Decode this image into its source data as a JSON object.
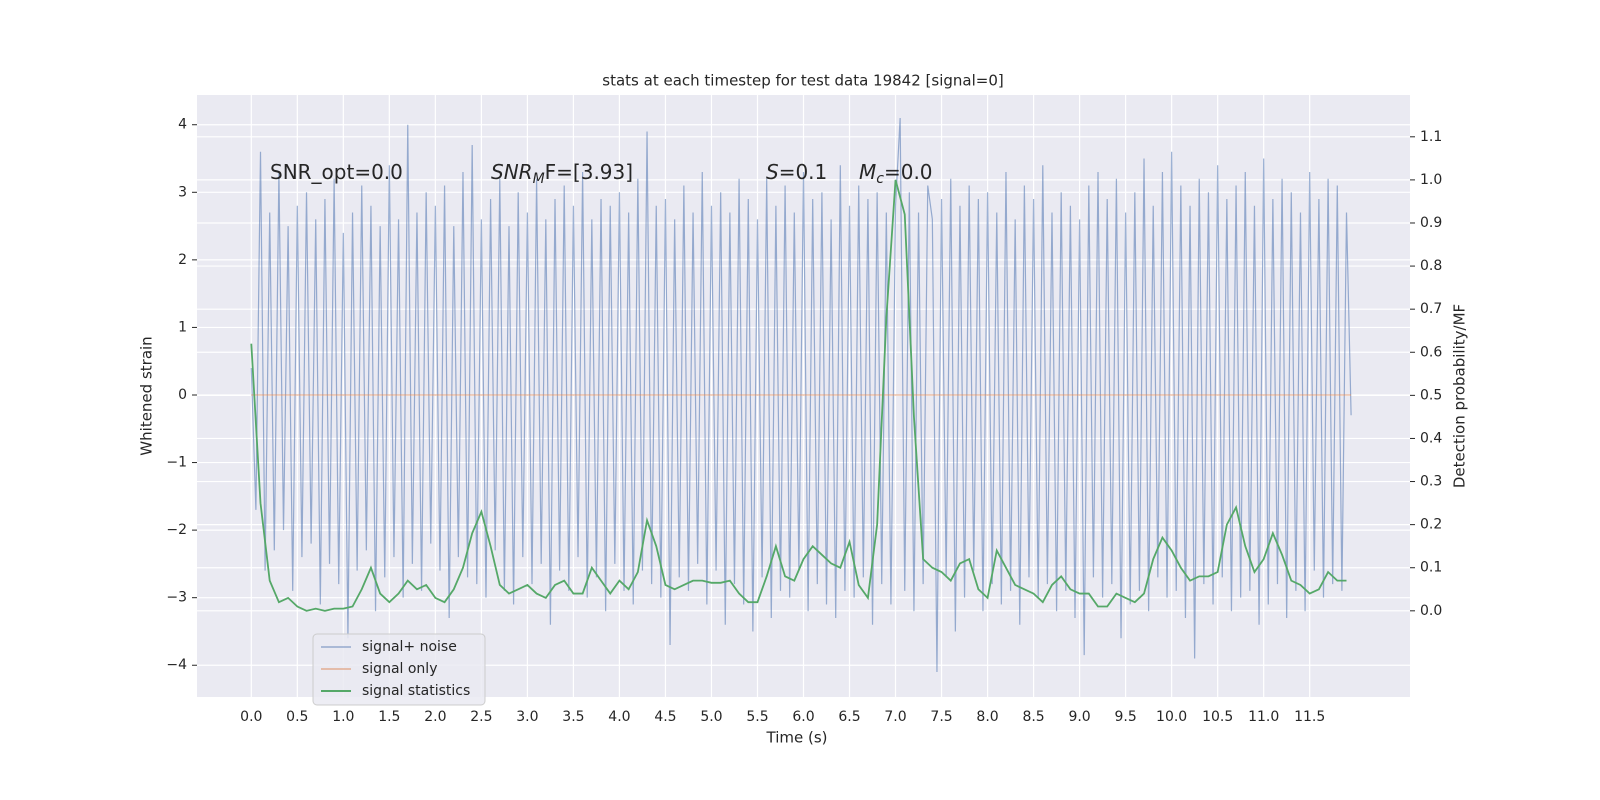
{
  "chart_data": {
    "type": "line",
    "title": "stats at each timestep for test data 19842 [signal=0]",
    "x_label": "Time (s)",
    "y_label": "Whitened strain",
    "y2_label": "Detection probability/MF",
    "xlim": [
      -0.59,
      12.59
    ],
    "ylim": [
      -4.47,
      4.44
    ],
    "y2lim": [
      -0.2,
      1.197
    ],
    "grid": true,
    "legend": "lower left",
    "xticks": [
      {
        "value": 0,
        "label": "0.0"
      },
      0.5,
      {
        "value": 1,
        "label": "1.0"
      },
      1.5,
      {
        "value": 2,
        "label": "2.0"
      },
      2.5,
      {
        "value": 3,
        "label": "3.0"
      },
      3.5,
      {
        "value": 4,
        "label": "4.0"
      },
      4.5,
      {
        "value": 5,
        "label": "5.0"
      },
      5.5,
      {
        "value": 6,
        "label": "6.0"
      },
      6.5,
      {
        "value": 7,
        "label": "7.0"
      },
      7.5,
      {
        "value": 8,
        "label": "8.0"
      },
      8.5,
      {
        "value": 9,
        "label": "9.0"
      },
      9.5,
      {
        "value": 10,
        "label": "10.0"
      },
      10.5,
      {
        "value": 11,
        "label": "11.0"
      },
      11.5
    ],
    "yticks": [
      {
        "value": -4,
        "label": "−4"
      },
      {
        "value": -3,
        "label": "−3"
      },
      {
        "value": -2,
        "label": "−2"
      },
      {
        "value": -1,
        "label": "−1"
      },
      0,
      1,
      2,
      3,
      4
    ],
    "y2ticks": [
      {
        "value": 0,
        "label": "0.0"
      },
      0.1,
      0.2,
      0.3,
      0.4,
      0.5,
      0.6,
      0.7,
      0.8,
      0.9,
      {
        "value": 1,
        "label": "1.0"
      },
      1.1
    ],
    "annotations": [
      {
        "text": "SNR_opt=0.0"
      },
      {
        "base": "SNR",
        "sub": "M",
        "tail": "F=[3.93]"
      },
      {
        "base": "S",
        "tail": "=0.1"
      },
      {
        "base": "M",
        "sub": "c",
        "tail": "=0.0"
      }
    ],
    "series": [
      {
        "name": "signal+ noise",
        "color": "#4c72b0",
        "axis": "y",
        "x": [
          0,
          0.05,
          0.1,
          0.15,
          0.2,
          0.25,
          0.3,
          0.35,
          0.4,
          0.45,
          0.5,
          0.55,
          0.6,
          0.65,
          0.7,
          0.75,
          0.8,
          0.85,
          0.9,
          0.95,
          1,
          1.05,
          1.1,
          1.15,
          1.2,
          1.25,
          1.3,
          1.35,
          1.4,
          1.45,
          1.5,
          1.55,
          1.6,
          1.65,
          1.7,
          1.75,
          1.8,
          1.85,
          1.9,
          1.95,
          2,
          2.05,
          2.1,
          2.15,
          2.2,
          2.25,
          2.3,
          2.35,
          2.4,
          2.45,
          2.5,
          2.55,
          2.6,
          2.65,
          2.7,
          2.75,
          2.8,
          2.85,
          2.9,
          2.95,
          3,
          3.05,
          3.1,
          3.15,
          3.2,
          3.25,
          3.3,
          3.35,
          3.4,
          3.45,
          3.5,
          3.55,
          3.6,
          3.65,
          3.7,
          3.75,
          3.8,
          3.85,
          3.9,
          3.95,
          4,
          4.05,
          4.1,
          4.15,
          4.2,
          4.25,
          4.3,
          4.35,
          4.4,
          4.45,
          4.5,
          4.55,
          4.6,
          4.65,
          4.7,
          4.75,
          4.8,
          4.85,
          4.9,
          4.95,
          5,
          5.05,
          5.1,
          5.15,
          5.2,
          5.25,
          5.3,
          5.35,
          5.4,
          5.45,
          5.5,
          5.55,
          5.6,
          5.65,
          5.7,
          5.75,
          5.8,
          5.85,
          5.9,
          5.95,
          6,
          6.05,
          6.1,
          6.15,
          6.2,
          6.25,
          6.3,
          6.35,
          6.4,
          6.45,
          6.5,
          6.55,
          6.6,
          6.65,
          6.7,
          6.75,
          6.8,
          6.85,
          6.9,
          6.95,
          7,
          7.05,
          7.1,
          7.15,
          7.2,
          7.25,
          7.3,
          7.35,
          7.4,
          7.45,
          7.5,
          7.55,
          7.6,
          7.65,
          7.7,
          7.75,
          7.8,
          7.85,
          7.9,
          7.95,
          8,
          8.05,
          8.1,
          8.15,
          8.2,
          8.25,
          8.3,
          8.35,
          8.4,
          8.45,
          8.5,
          8.55,
          8.6,
          8.65,
          8.7,
          8.75,
          8.8,
          8.85,
          8.9,
          8.95,
          9,
          9.05,
          9.1,
          9.15,
          9.2,
          9.25,
          9.3,
          9.35,
          9.4,
          9.45,
          9.5,
          9.55,
          9.6,
          9.65,
          9.7,
          9.75,
          9.8,
          9.85,
          9.9,
          9.95,
          10,
          10.05,
          10.1,
          10.15,
          10.2,
          10.25,
          10.3,
          10.35,
          10.4,
          10.45,
          10.5,
          10.55,
          10.6,
          10.65,
          10.7,
          10.75,
          10.8,
          10.85,
          10.9,
          10.95,
          11,
          11.05,
          11.1,
          11.15,
          11.2,
          11.25,
          11.3,
          11.35,
          11.4,
          11.45,
          11.5,
          11.55,
          11.6,
          11.65,
          11.7,
          11.75,
          11.8,
          11.85,
          11.9,
          11.95
        ],
        "values": [
          0.4,
          -1.7,
          3.6,
          -2.6,
          2.7,
          -2.3,
          3.3,
          -2.0,
          2.5,
          -2.9,
          2.8,
          -2.4,
          3.0,
          -2.2,
          2.6,
          -3.1,
          2.9,
          -2.5,
          3.2,
          -2.8,
          2.4,
          -3.6,
          2.7,
          -2.6,
          3.1,
          -2.3,
          2.8,
          -3.2,
          2.5,
          -2.7,
          3.4,
          -2.4,
          2.6,
          -3.0,
          4.0,
          -2.5,
          2.7,
          -2.9,
          3.0,
          -2.2,
          2.8,
          -2.6,
          3.1,
          -3.3,
          2.5,
          -2.4,
          3.3,
          -2.7,
          3.7,
          -2.8,
          2.6,
          -3.0,
          2.9,
          -2.3,
          3.2,
          -2.9,
          2.5,
          -3.1,
          3.0,
          -2.4,
          2.7,
          -2.8,
          3.2,
          -2.5,
          2.6,
          -3.4,
          2.9,
          -2.6,
          3.1,
          -2.9,
          2.8,
          -2.4,
          3.3,
          -3.0,
          2.6,
          -2.7,
          2.9,
          -3.2,
          2.8,
          -2.5,
          3.0,
          -2.9,
          2.7,
          -3.1,
          3.2,
          -2.6,
          3.9,
          -2.8,
          2.8,
          -3.0,
          2.9,
          -3.7,
          2.6,
          -2.7,
          3.1,
          -2.9,
          2.7,
          -2.5,
          3.3,
          -3.1,
          2.8,
          -2.6,
          3.0,
          -3.4,
          2.7,
          -2.8,
          3.2,
          -3.1,
          2.9,
          -3.5,
          2.6,
          -2.7,
          3.2,
          -3.3,
          2.8,
          -2.9,
          3.1,
          -3.0,
          2.7,
          -2.6,
          3.3,
          -3.2,
          2.9,
          -2.8,
          3.0,
          -3.1,
          2.6,
          -3.3,
          3.4,
          -2.9,
          2.8,
          -3.0,
          3.1,
          -2.7,
          2.9,
          -3.4,
          3.0,
          -2.8,
          2.7,
          -3.1,
          2.8,
          4.1,
          -2.9,
          3.0,
          -3.2,
          2.7,
          -2.8,
          3.1,
          2.6,
          -4.1,
          2.9,
          -2.7,
          3.2,
          -3.5,
          2.8,
          -3.0,
          3.1,
          -2.6,
          2.9,
          -3.2,
          3.0,
          -2.8,
          2.7,
          -3.1,
          3.3,
          -2.9,
          2.6,
          -3.4,
          3.1,
          -2.7,
          2.9,
          -3.0,
          3.4,
          -2.8,
          2.7,
          -3.2,
          3.0,
          -2.9,
          2.8,
          -3.3,
          2.6,
          -3.85,
          3.1,
          -2.7,
          3.3,
          -3.0,
          2.9,
          -2.8,
          3.2,
          -3.6,
          2.7,
          -3.1,
          3.0,
          -2.9,
          3.5,
          -3.2,
          2.8,
          -2.7,
          3.3,
          -3.0,
          3.6,
          -2.9,
          3.1,
          -3.3,
          2.8,
          -3.9,
          3.2,
          -2.8,
          3.0,
          -3.1,
          3.4,
          -2.7,
          2.9,
          -3.2,
          3.1,
          -3.0,
          3.3,
          -2.9,
          2.8,
          -3.4,
          3.5,
          -3.1,
          2.9,
          -2.8,
          3.2,
          -3.3,
          3.0,
          -2.9,
          2.7,
          -3.2,
          3.3,
          -2.6,
          2.9,
          -3.0,
          3.2,
          -2.8,
          3.1,
          -2.9,
          2.7,
          -0.3
        ]
      },
      {
        "name": "signal only",
        "color": "#dd8452",
        "axis": "y",
        "x": [
          0,
          11.95
        ],
        "values": [
          0,
          0
        ]
      },
      {
        "name": "signal statistics",
        "color": "#55a868",
        "axis": "y2",
        "x": [
          0,
          0.1,
          0.2,
          0.3,
          0.4,
          0.5,
          0.6,
          0.7,
          0.8,
          0.9,
          1,
          1.1,
          1.2,
          1.3,
          1.4,
          1.5,
          1.6,
          1.7,
          1.8,
          1.9,
          2,
          2.1,
          2.2,
          2.3,
          2.4,
          2.5,
          2.6,
          2.7,
          2.8,
          2.9,
          3,
          3.1,
          3.2,
          3.3,
          3.4,
          3.5,
          3.6,
          3.7,
          3.8,
          3.9,
          4,
          4.1,
          4.2,
          4.3,
          4.4,
          4.5,
          4.6,
          4.7,
          4.8,
          4.9,
          5,
          5.1,
          5.2,
          5.3,
          5.4,
          5.5,
          5.6,
          5.7,
          5.8,
          5.9,
          6,
          6.1,
          6.2,
          6.3,
          6.4,
          6.5,
          6.6,
          6.7,
          6.8,
          6.9,
          7,
          7.1,
          7.2,
          7.3,
          7.4,
          7.5,
          7.6,
          7.7,
          7.8,
          7.9,
          8,
          8.1,
          8.2,
          8.3,
          8.4,
          8.5,
          8.6,
          8.7,
          8.8,
          8.9,
          9,
          9.1,
          9.2,
          9.3,
          9.4,
          9.5,
          9.6,
          9.7,
          9.8,
          9.9,
          10,
          10.1,
          10.2,
          10.3,
          10.4,
          10.5,
          10.6,
          10.7,
          10.8,
          10.9,
          11,
          11.1,
          11.2,
          11.3,
          11.4,
          11.5,
          11.6,
          11.7,
          11.8,
          11.9
        ],
        "values": [
          0.62,
          0.25,
          0.07,
          0.02,
          0.03,
          0.01,
          0.0,
          0.005,
          0.0,
          0.005,
          0.005,
          0.01,
          0.05,
          0.1,
          0.04,
          0.02,
          0.04,
          0.07,
          0.05,
          0.06,
          0.03,
          0.02,
          0.05,
          0.1,
          0.18,
          0.23,
          0.15,
          0.06,
          0.04,
          0.05,
          0.06,
          0.04,
          0.03,
          0.06,
          0.07,
          0.04,
          0.04,
          0.1,
          0.07,
          0.04,
          0.07,
          0.05,
          0.09,
          0.21,
          0.15,
          0.06,
          0.05,
          0.06,
          0.07,
          0.07,
          0.065,
          0.065,
          0.07,
          0.04,
          0.02,
          0.02,
          0.08,
          0.15,
          0.08,
          0.07,
          0.12,
          0.15,
          0.13,
          0.11,
          0.1,
          0.16,
          0.06,
          0.03,
          0.2,
          0.68,
          1.0,
          0.92,
          0.45,
          0.12,
          0.1,
          0.09,
          0.07,
          0.11,
          0.12,
          0.05,
          0.03,
          0.14,
          0.1,
          0.06,
          0.05,
          0.04,
          0.02,
          0.06,
          0.08,
          0.05,
          0.04,
          0.04,
          0.01,
          0.01,
          0.04,
          0.03,
          0.02,
          0.04,
          0.12,
          0.17,
          0.14,
          0.1,
          0.07,
          0.08,
          0.08,
          0.09,
          0.2,
          0.24,
          0.15,
          0.09,
          0.12,
          0.18,
          0.13,
          0.07,
          0.06,
          0.04,
          0.05,
          0.09,
          0.07,
          0.07
        ]
      }
    ]
  }
}
